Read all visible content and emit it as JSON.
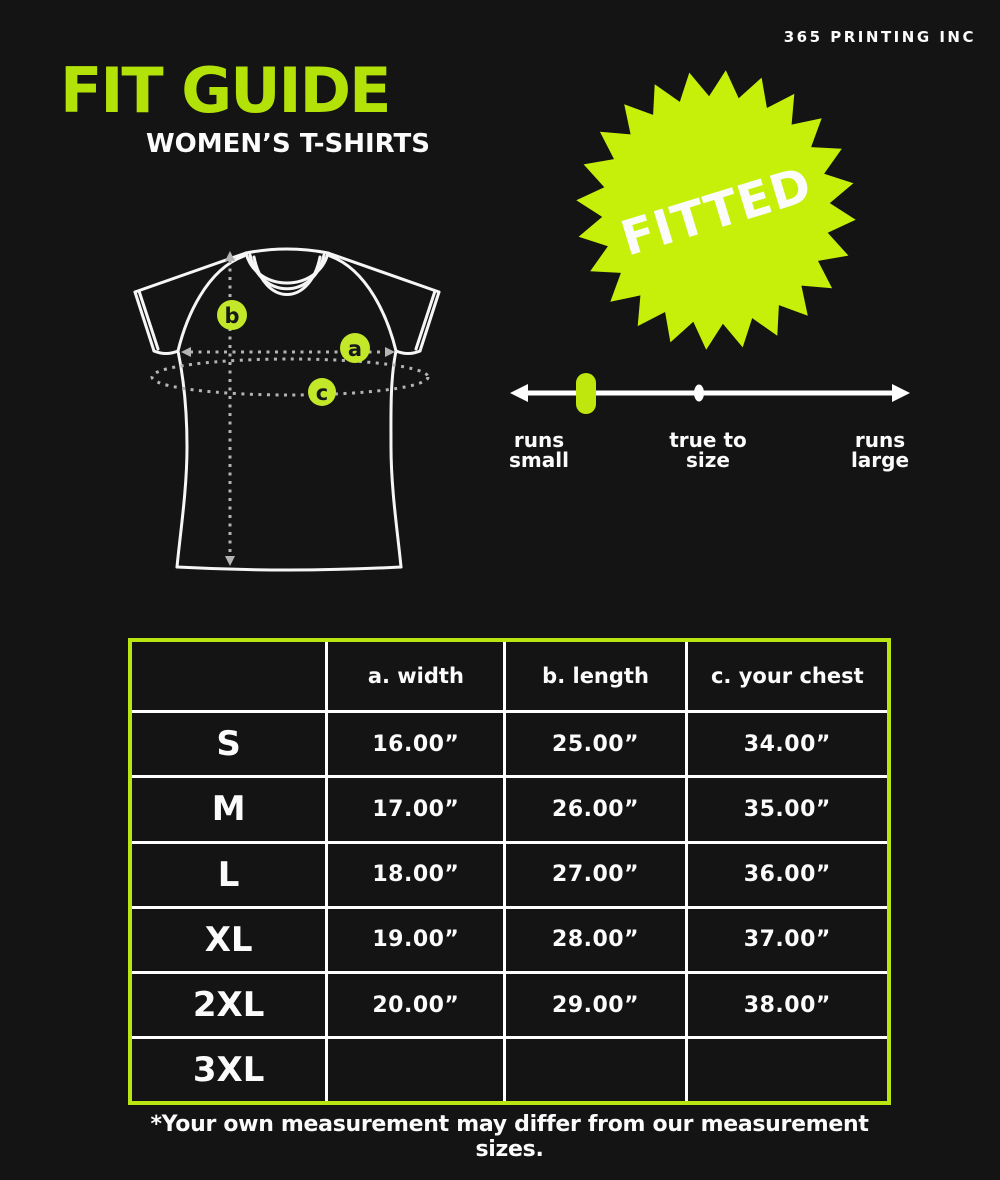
{
  "brand": "365 PRINTING INC",
  "header": {
    "title": "FIT GUIDE",
    "subtitle": "WOMEN’S T-SHIRTS"
  },
  "badge": {
    "label": "FITTED"
  },
  "fit_scale": {
    "labels": [
      {
        "line1": "runs",
        "line2": "small"
      },
      {
        "line1": "true to",
        "line2": "size"
      },
      {
        "line1": "runs",
        "line2": "large"
      }
    ],
    "marker_position": "runs small side"
  },
  "diagram": {
    "marker_a": "a",
    "marker_b": "b",
    "marker_c": "c"
  },
  "size_table": {
    "headers": [
      "",
      "a. width",
      "b. length",
      "c. your chest"
    ],
    "rows": [
      {
        "size": "S",
        "width": "16.00”",
        "length": "25.00”",
        "chest": "34.00”"
      },
      {
        "size": "M",
        "width": "17.00”",
        "length": "26.00”",
        "chest": "35.00”"
      },
      {
        "size": "L",
        "width": "18.00”",
        "length": "27.00”",
        "chest": "36.00”"
      },
      {
        "size": "XL",
        "width": "19.00”",
        "length": "28.00”",
        "chest": "37.00”"
      },
      {
        "size": "2XL",
        "width": "20.00”",
        "length": "29.00”",
        "chest": "38.00”"
      },
      {
        "size": "3XL",
        "width": "",
        "length": "",
        "chest": ""
      }
    ]
  },
  "footnote": "*Your own measurement may differ from our measurement sizes.",
  "colors": {
    "background": "#141414",
    "text_white": "#fbfbfb",
    "title_green": "#b2e207",
    "badge_green": "#c6f00a",
    "circle_green": "#c3e82a",
    "marker_green": "#bfe70e",
    "table_border_green": "#b9e511",
    "dash_gray": "#b4b4b4",
    "circle_letter_dark": "#17181b"
  }
}
